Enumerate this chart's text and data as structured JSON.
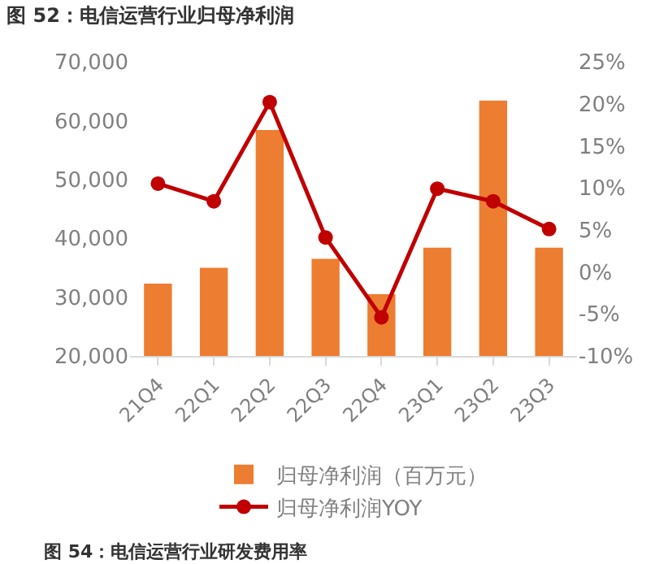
{
  "chart_data": {
    "type": "bar",
    "title": "图 52：电信运营行业归母净利润",
    "categories": [
      "21Q4",
      "22Q1",
      "22Q2",
      "22Q3",
      "22Q4",
      "23Q1",
      "23Q2",
      "23Q3"
    ],
    "series": [
      {
        "name": "归母净利润（百万元）",
        "color": "#ed7d31",
        "values": [
          32300,
          35000,
          58400,
          36500,
          30500,
          38400,
          63400,
          38400
        ]
      },
      {
        "name": "归母净利润YOY",
        "type": "line",
        "axis": "y2",
        "color": "#c00000",
        "marker": "circle",
        "values": [
          10.5,
          8.4,
          20.2,
          4.1,
          -5.4,
          9.9,
          8.4,
          5.1
        ]
      }
    ],
    "ylim": [
      20000,
      70000
    ],
    "yticks": [
      {
        "value": 20000,
        "label": "20,000"
      },
      {
        "value": 30000,
        "label": "30,000"
      },
      {
        "value": 40000,
        "label": "40,000"
      },
      {
        "value": 50000,
        "label": "50,000"
      },
      {
        "value": 60000,
        "label": "60,000"
      },
      {
        "value": 70000,
        "label": "70,000"
      }
    ],
    "y2lim": [
      -10,
      25
    ],
    "y2ticks": [
      {
        "value": -10,
        "label": "-10%"
      },
      {
        "value": -5,
        "label": "-5%"
      },
      {
        "value": 0,
        "label": "0%"
      },
      {
        "value": 5,
        "label": "5%"
      },
      {
        "value": 10,
        "label": "10%"
      },
      {
        "value": 15,
        "label": "15%"
      },
      {
        "value": 20,
        "label": "20%"
      },
      {
        "value": 25,
        "label": "25%"
      }
    ],
    "grid": false,
    "legend": "bottom",
    "annotations": [
      "图 54：电信运营行业研发费用率"
    ]
  }
}
